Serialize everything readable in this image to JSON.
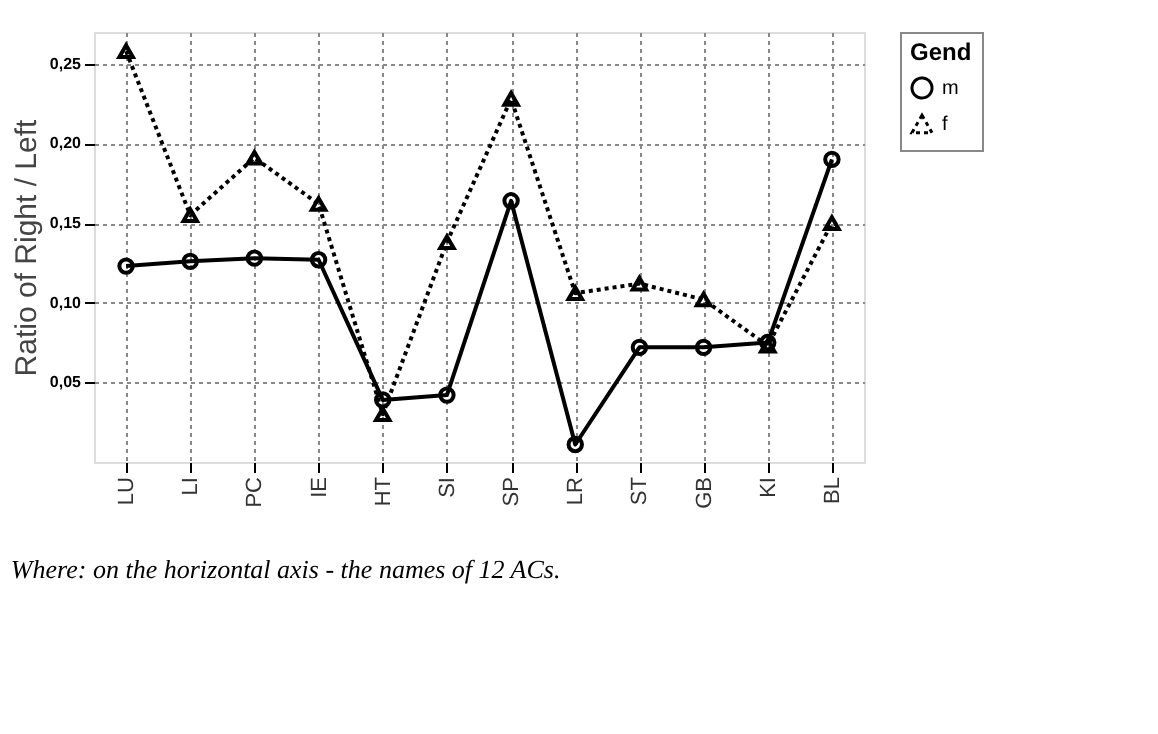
{
  "chart_data": {
    "type": "line",
    "ylabel": "Ratio of Right / Left",
    "legend_title": "Gend",
    "legend": "top right",
    "grid": true,
    "categories": [
      "LU",
      "LI",
      "PC",
      "IE",
      "HT",
      "SI",
      "SP",
      "LR",
      "ST",
      "GB",
      "KI",
      "BL"
    ],
    "series": [
      {
        "name": "m",
        "color": "#000000",
        "marker": "circle",
        "line_style": "solid",
        "values": [
          0.123,
          0.126,
          0.128,
          0.127,
          0.039,
          0.042,
          0.164,
          0.011,
          0.072,
          0.072,
          0.075,
          0.19
        ]
      },
      {
        "name": "f",
        "color": "#000000",
        "marker": "triangle",
        "line_style": "dotted",
        "values": [
          0.258,
          0.155,
          0.191,
          0.162,
          0.03,
          0.138,
          0.228,
          0.106,
          0.112,
          0.102,
          0.073,
          0.15
        ]
      }
    ],
    "ylim": [
      0,
      0.27
    ],
    "yticks": [
      {
        "value": 0.05,
        "label": "0,05"
      },
      {
        "value": 0.1,
        "label": "0,10"
      },
      {
        "value": 0.15,
        "label": "0,15"
      },
      {
        "value": 0.2,
        "label": "0,20"
      },
      {
        "value": 0.25,
        "label": "0,25"
      }
    ],
    "annotations": [
      "Where: on the horizontal axis - the names of 12 ACs."
    ]
  }
}
